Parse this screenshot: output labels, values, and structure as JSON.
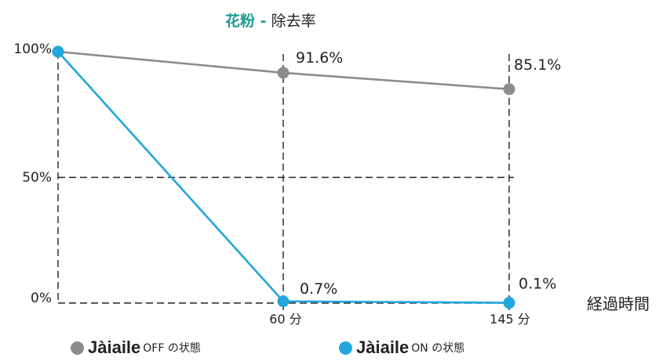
{
  "chart_data": {
    "type": "line",
    "title_strong": "花粉 -",
    "title_rest": "除去率",
    "x": [
      0,
      60,
      145
    ],
    "x_tick_labels": [
      "60 分",
      "145 分"
    ],
    "x_unit_label": "経過時間",
    "y_tick_labels": [
      "100%",
      "50%",
      "0%"
    ],
    "ylim": [
      0,
      100
    ],
    "grid": "dashed at 60 min, 145 min and 50%",
    "series": [
      {
        "legend_brand": "Jàiaile",
        "legend_state": "OFF の状態",
        "color": "#8c8c8c",
        "values": [
          100,
          91.6,
          85.1
        ],
        "data_labels": [
          "",
          "91.6%",
          "85.1%"
        ]
      },
      {
        "legend_brand": "Jàiaile",
        "legend_state": "ON の状態",
        "color": "#21a6dd",
        "values": [
          100,
          0.7,
          0.1
        ],
        "data_labels": [
          "",
          "0.7%",
          "0.1%"
        ]
      }
    ]
  }
}
